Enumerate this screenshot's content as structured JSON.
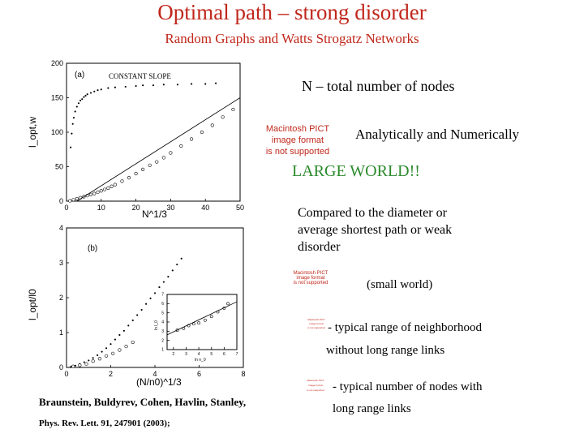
{
  "slide": {
    "title": "Optimal path – strong disorder",
    "subtitle": "Random Graphs and Watts Strogatz Networks",
    "n_def": "N – total number of nodes",
    "analytic": "Analytically and Numerically",
    "large_world": "LARGE WORLD!!",
    "compared": [
      "Compared to the diameter or",
      "average shortest path or weak",
      "disorder"
    ],
    "small_world": "(small world)",
    "range_1": "- typical range of neighborhood",
    "range_2": "without long range links",
    "nodes_1": "- typical number of nodes with",
    "nodes_2": "long range links",
    "ref_1": "Braunstein, Buldyrev, Cohen, Havlin, Stanley,",
    "ref_2": "Phys. Rev. Lett. 91, 247901 (2003);"
  },
  "pict_placeholder": [
    "Macintosh PICT",
    "image format",
    "is not supported"
  ],
  "colors": {
    "title": "#c0271b",
    "highlight": "#2b8a2b"
  },
  "chart_data": [
    {
      "type": "scatter",
      "panel_label": "(a)",
      "annotation": "CONSTANT SLOPE",
      "xlabel": "N^1/3",
      "ylabel": "l_opt,w",
      "xlim": [
        0,
        50
      ],
      "ylim": [
        0,
        200
      ],
      "xticks": [
        0,
        10,
        20,
        30,
        40,
        50
      ],
      "yticks": [
        0,
        50,
        100,
        150,
        200
      ],
      "series": [
        {
          "marker": "dot",
          "points": [
            [
              1.2,
              78
            ],
            [
              1.5,
              98
            ],
            [
              1.8,
              112
            ],
            [
              2.1,
              121
            ],
            [
              2.5,
              130
            ],
            [
              3,
              137
            ],
            [
              3.5,
              142
            ],
            [
              4,
              146
            ],
            [
              4.5,
              148
            ],
            [
              5,
              151
            ],
            [
              5.5,
              153
            ],
            [
              6,
              155
            ],
            [
              7,
              157
            ],
            [
              8,
              159
            ],
            [
              9,
              161
            ],
            [
              10,
              162
            ],
            [
              12,
              164
            ],
            [
              14,
              165
            ],
            [
              17,
              166
            ],
            [
              20,
              167
            ],
            [
              22,
              168
            ],
            [
              25,
              168
            ],
            [
              28,
              169
            ],
            [
              32,
              169
            ],
            [
              36,
              170
            ],
            [
              40,
              170
            ],
            [
              43,
              171
            ]
          ]
        },
        {
          "marker": "circle",
          "points": [
            [
              1,
              0.5
            ],
            [
              2,
              2
            ],
            [
              3,
              3.5
            ],
            [
              4,
              5
            ],
            [
              5,
              6.5
            ],
            [
              6,
              8
            ],
            [
              7,
              9.5
            ],
            [
              8,
              11
            ],
            [
              9,
              13
            ],
            [
              10,
              15
            ],
            [
              11,
              17
            ],
            [
              12,
              19
            ],
            [
              13,
              21.5
            ],
            [
              14,
              24
            ],
            [
              16,
              29
            ],
            [
              18,
              34
            ],
            [
              20,
              40
            ],
            [
              22,
              46
            ],
            [
              24,
              52
            ],
            [
              26,
              57
            ],
            [
              28,
              63
            ],
            [
              30,
              70
            ],
            [
              33,
              80
            ],
            [
              36,
              90
            ],
            [
              39,
              100
            ],
            [
              42,
              110
            ],
            [
              45,
              122
            ],
            [
              48,
              133
            ]
          ]
        }
      ],
      "fit_line": [
        [
          3,
          0
        ],
        [
          50,
          150
        ]
      ]
    },
    {
      "type": "scatter",
      "panel_label": "(b)",
      "xlabel": "(N/n0)^1/3",
      "ylabel": "l_opt/l0",
      "xlim": [
        0,
        8
      ],
      "ylim": [
        0,
        4
      ],
      "xticks": [
        0,
        2,
        4,
        6,
        8
      ],
      "yticks": [
        0,
        1,
        2,
        3,
        4
      ],
      "series": [
        {
          "marker": "dot",
          "points": [
            [
              0.2,
              0.02
            ],
            [
              0.4,
              0.05
            ],
            [
              0.6,
              0.1
            ],
            [
              0.8,
              0.15
            ],
            [
              1,
              0.2
            ],
            [
              1.2,
              0.27
            ],
            [
              1.4,
              0.35
            ],
            [
              1.6,
              0.45
            ],
            [
              1.8,
              0.55
            ],
            [
              2,
              0.67
            ],
            [
              2.2,
              0.8
            ],
            [
              2.4,
              0.93
            ],
            [
              2.6,
              1.05
            ],
            [
              2.8,
              1.2
            ],
            [
              3,
              1.35
            ],
            [
              3.2,
              1.5
            ],
            [
              3.4,
              1.65
            ],
            [
              3.6,
              1.82
            ],
            [
              3.8,
              1.98
            ],
            [
              4,
              2.13
            ],
            [
              4.2,
              2.3
            ],
            [
              4.4,
              2.45
            ],
            [
              4.6,
              2.6
            ],
            [
              4.8,
              2.78
            ],
            [
              5,
              2.95
            ],
            [
              5.2,
              3.12
            ]
          ]
        },
        {
          "marker": "circle",
          "points": [
            [
              0.3,
              0.03
            ],
            [
              0.6,
              0.06
            ],
            [
              0.9,
              0.1
            ],
            [
              1.2,
              0.18
            ],
            [
              1.5,
              0.25
            ],
            [
              1.8,
              0.33
            ],
            [
              2.1,
              0.4
            ],
            [
              2.4,
              0.5
            ],
            [
              2.7,
              0.6
            ],
            [
              3,
              0.72
            ]
          ]
        }
      ],
      "inset": {
        "xlabel": "ln n_0",
        "ylabel": "ln l_0",
        "xticks": [
          2,
          3,
          4,
          5,
          6,
          7
        ],
        "yticks": [
          1,
          2,
          3,
          4,
          5,
          6,
          7
        ],
        "xlim": [
          1.5,
          7
        ],
        "ylim": [
          1,
          7
        ],
        "points": [
          [
            2.3,
            3.1
          ],
          [
            2.8,
            3.3
          ],
          [
            3.2,
            3.6
          ],
          [
            3.6,
            3.8
          ],
          [
            4,
            3.9
          ],
          [
            4.5,
            4.2
          ],
          [
            5,
            4.6
          ],
          [
            5.5,
            5.1
          ],
          [
            6,
            5.5
          ],
          [
            6.3,
            6
          ]
        ],
        "fit_line": [
          [
            1.5,
            2.6
          ],
          [
            7,
            6.2
          ]
        ]
      }
    }
  ]
}
